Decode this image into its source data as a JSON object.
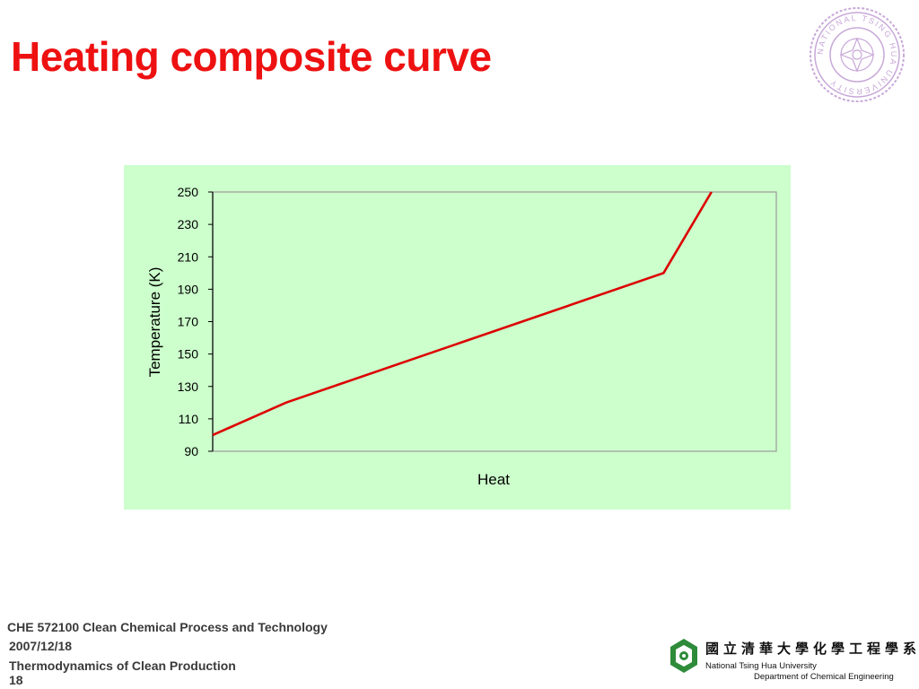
{
  "slide": {
    "title": "Heating composite curve"
  },
  "seal_text": "NATIONAL TSING HUA UNIVERSITY",
  "colors": {
    "title": "#ee1111",
    "chart_background": "#ccffcc",
    "line": "#dd0000",
    "seal": "#c8a8d8",
    "logo": "#2e8b3a"
  },
  "chart_data": {
    "type": "line",
    "xlabel": "Heat",
    "ylabel": "Temperature (K)",
    "ylim": [
      90,
      250
    ],
    "yticks": [
      90,
      110,
      130,
      150,
      170,
      190,
      210,
      230,
      250
    ],
    "x_ticks_shown": false,
    "grid": false,
    "legend": "none",
    "series": [
      {
        "x": [
          0,
          13,
          80,
          88.5
        ],
        "y": [
          100,
          120,
          200,
          250
        ]
      }
    ]
  },
  "footer": {
    "course": "CHE 572100 Clean Chemical Process and Technology",
    "date": "2007/12/18",
    "topic": "Thermodynamics of Clean Production",
    "page": "18"
  },
  "department": {
    "chinese": "國立清華大學化學工程學系",
    "university": "National Tsing Hua University",
    "department": "Department of Chemical Engineering"
  }
}
